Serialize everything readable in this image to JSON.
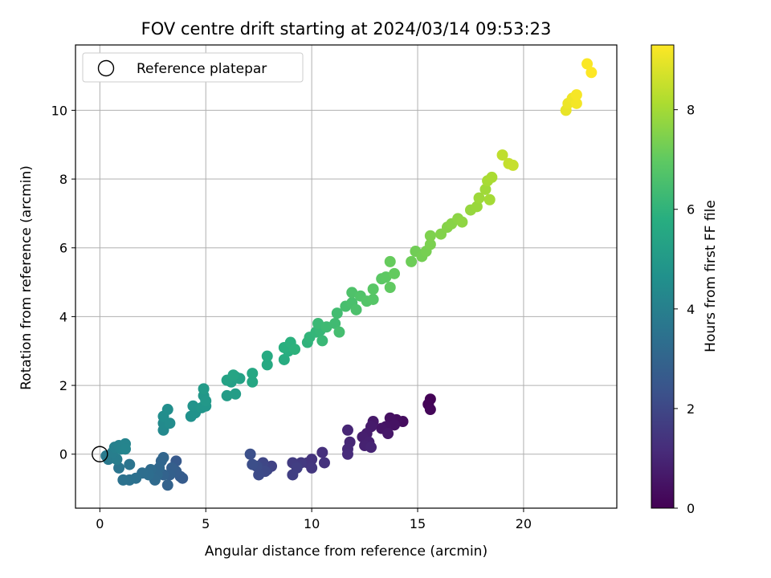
{
  "chart_data": {
    "type": "scatter",
    "title": "FOV centre drift starting at 2024/03/14 09:53:23",
    "xlabel": "Angular distance from reference (arcmin)",
    "ylabel": "Rotation from reference (arcmin)",
    "xlim": [
      -1.15,
      24.4
    ],
    "ylim": [
      -1.57,
      11.9
    ],
    "xticks": [
      0,
      5,
      10,
      15,
      20
    ],
    "yticks": [
      0,
      2,
      4,
      6,
      8,
      10
    ],
    "grid": true,
    "legend": {
      "placement": "top-left",
      "entries": [
        "Reference platepar"
      ]
    },
    "reference_point": {
      "x": 0,
      "y": 0
    },
    "colorbar": {
      "label": "Hours from first FF file",
      "range": [
        0,
        9.3
      ],
      "ticks": [
        0,
        2,
        4,
        6,
        8
      ],
      "colormap": "viridis"
    },
    "points": [
      {
        "x": 15.6,
        "y": 1.6,
        "h": 0.05
      },
      {
        "x": 15.5,
        "y": 1.45,
        "h": 0.1
      },
      {
        "x": 15.6,
        "y": 1.3,
        "h": 0.15
      },
      {
        "x": 14.3,
        "y": 0.95,
        "h": 0.3
      },
      {
        "x": 14.0,
        "y": 1.0,
        "h": 0.35
      },
      {
        "x": 13.7,
        "y": 1.05,
        "h": 0.4
      },
      {
        "x": 13.9,
        "y": 0.85,
        "h": 0.45
      },
      {
        "x": 13.5,
        "y": 0.8,
        "h": 0.5
      },
      {
        "x": 13.3,
        "y": 0.75,
        "h": 0.55
      },
      {
        "x": 13.6,
        "y": 0.6,
        "h": 0.6
      },
      {
        "x": 12.9,
        "y": 0.95,
        "h": 0.65
      },
      {
        "x": 12.8,
        "y": 0.8,
        "h": 0.7
      },
      {
        "x": 12.6,
        "y": 0.6,
        "h": 0.75
      },
      {
        "x": 12.4,
        "y": 0.5,
        "h": 0.8
      },
      {
        "x": 12.7,
        "y": 0.35,
        "h": 0.85
      },
      {
        "x": 12.5,
        "y": 0.25,
        "h": 0.9
      },
      {
        "x": 12.8,
        "y": 0.2,
        "h": 0.95
      },
      {
        "x": 11.7,
        "y": 0.7,
        "h": 1.0
      },
      {
        "x": 11.8,
        "y": 0.35,
        "h": 1.05
      },
      {
        "x": 11.7,
        "y": 0.15,
        "h": 1.1
      },
      {
        "x": 11.7,
        "y": 0.0,
        "h": 1.15
      },
      {
        "x": 10.5,
        "y": 0.05,
        "h": 1.3
      },
      {
        "x": 10.6,
        "y": -0.25,
        "h": 1.35
      },
      {
        "x": 10.0,
        "y": -0.15,
        "h": 1.4
      },
      {
        "x": 9.8,
        "y": -0.25,
        "h": 1.45
      },
      {
        "x": 10.0,
        "y": -0.4,
        "h": 1.5
      },
      {
        "x": 9.5,
        "y": -0.25,
        "h": 1.55
      },
      {
        "x": 9.3,
        "y": -0.3,
        "h": 1.6
      },
      {
        "x": 9.1,
        "y": -0.25,
        "h": 1.65
      },
      {
        "x": 9.3,
        "y": -0.4,
        "h": 1.7
      },
      {
        "x": 9.1,
        "y": -0.6,
        "h": 1.75
      },
      {
        "x": 8.1,
        "y": -0.35,
        "h": 1.85
      },
      {
        "x": 7.9,
        "y": -0.45,
        "h": 1.9
      },
      {
        "x": 7.7,
        "y": -0.25,
        "h": 1.95
      },
      {
        "x": 7.6,
        "y": -0.4,
        "h": 2.0
      },
      {
        "x": 7.8,
        "y": -0.5,
        "h": 2.05
      },
      {
        "x": 7.5,
        "y": -0.6,
        "h": 2.1
      },
      {
        "x": 7.4,
        "y": -0.35,
        "h": 2.15
      },
      {
        "x": 7.2,
        "y": -0.3,
        "h": 2.2
      },
      {
        "x": 7.1,
        "y": 0.0,
        "h": 2.25
      },
      {
        "x": 3.6,
        "y": -0.2,
        "h": 2.6
      },
      {
        "x": 3.9,
        "y": -0.7,
        "h": 2.65
      },
      {
        "x": 3.8,
        "y": -0.65,
        "h": 2.7
      },
      {
        "x": 3.6,
        "y": -0.5,
        "h": 2.75
      },
      {
        "x": 3.4,
        "y": -0.4,
        "h": 2.8
      },
      {
        "x": 3.3,
        "y": -0.6,
        "h": 2.85
      },
      {
        "x": 3.2,
        "y": -0.9,
        "h": 2.9
      },
      {
        "x": 3.0,
        "y": -0.6,
        "h": 2.95
      },
      {
        "x": 2.9,
        "y": -0.2,
        "h": 3.0
      },
      {
        "x": 3.0,
        "y": -0.1,
        "h": 3.05
      },
      {
        "x": 2.8,
        "y": -0.4,
        "h": 3.1
      },
      {
        "x": 2.7,
        "y": -0.6,
        "h": 3.15
      },
      {
        "x": 2.6,
        "y": -0.75,
        "h": 3.2
      },
      {
        "x": 2.4,
        "y": -0.45,
        "h": 3.25
      },
      {
        "x": 2.3,
        "y": -0.6,
        "h": 3.3
      },
      {
        "x": 2.0,
        "y": -0.55,
        "h": 3.35
      },
      {
        "x": 1.7,
        "y": -0.7,
        "h": 3.4
      },
      {
        "x": 1.4,
        "y": -0.75,
        "h": 3.45
      },
      {
        "x": 1.1,
        "y": -0.75,
        "h": 3.5
      },
      {
        "x": 1.4,
        "y": -0.3,
        "h": 3.55
      },
      {
        "x": 0.9,
        "y": -0.4,
        "h": 3.6
      },
      {
        "x": 0.6,
        "y": -0.1,
        "h": 3.7
      },
      {
        "x": 0.4,
        "y": -0.15,
        "h": 3.75
      },
      {
        "x": 0.3,
        "y": -0.05,
        "h": 3.8
      },
      {
        "x": 0.5,
        "y": -0.05,
        "h": 3.85
      },
      {
        "x": 0.8,
        "y": -0.15,
        "h": 3.9
      },
      {
        "x": 0.6,
        "y": 0.05,
        "h": 3.95
      },
      {
        "x": 0.7,
        "y": 0.2,
        "h": 4.0
      },
      {
        "x": 0.9,
        "y": 0.25,
        "h": 4.05
      },
      {
        "x": 1.0,
        "y": 0.15,
        "h": 4.1
      },
      {
        "x": 1.2,
        "y": 0.3,
        "h": 4.15
      },
      {
        "x": 1.2,
        "y": 0.15,
        "h": 4.2
      },
      {
        "x": 3.0,
        "y": 0.7,
        "h": 4.35
      },
      {
        "x": 3.0,
        "y": 0.9,
        "h": 4.4
      },
      {
        "x": 3.3,
        "y": 0.9,
        "h": 4.45
      },
      {
        "x": 3.0,
        "y": 1.1,
        "h": 4.5
      },
      {
        "x": 3.2,
        "y": 1.3,
        "h": 4.55
      },
      {
        "x": 4.3,
        "y": 1.1,
        "h": 4.65
      },
      {
        "x": 4.5,
        "y": 1.2,
        "h": 4.7
      },
      {
        "x": 4.4,
        "y": 1.4,
        "h": 4.75
      },
      {
        "x": 4.8,
        "y": 1.35,
        "h": 4.8
      },
      {
        "x": 5.0,
        "y": 1.4,
        "h": 4.85
      },
      {
        "x": 4.9,
        "y": 1.7,
        "h": 4.9
      },
      {
        "x": 5.0,
        "y": 1.55,
        "h": 4.95
      },
      {
        "x": 4.9,
        "y": 1.9,
        "h": 5.0
      },
      {
        "x": 6.0,
        "y": 1.7,
        "h": 5.1
      },
      {
        "x": 6.4,
        "y": 1.75,
        "h": 5.15
      },
      {
        "x": 6.2,
        "y": 2.1,
        "h": 5.2
      },
      {
        "x": 6.4,
        "y": 2.25,
        "h": 5.25
      },
      {
        "x": 6.6,
        "y": 2.2,
        "h": 5.3
      },
      {
        "x": 6.0,
        "y": 2.15,
        "h": 5.35
      },
      {
        "x": 6.3,
        "y": 2.3,
        "h": 5.4
      },
      {
        "x": 7.2,
        "y": 2.1,
        "h": 5.5
      },
      {
        "x": 7.2,
        "y": 2.35,
        "h": 5.55
      },
      {
        "x": 7.9,
        "y": 2.6,
        "h": 5.6
      },
      {
        "x": 7.9,
        "y": 2.85,
        "h": 5.65
      },
      {
        "x": 8.7,
        "y": 2.75,
        "h": 5.75
      },
      {
        "x": 8.9,
        "y": 3.0,
        "h": 5.8
      },
      {
        "x": 8.7,
        "y": 3.1,
        "h": 5.85
      },
      {
        "x": 9.0,
        "y": 3.25,
        "h": 5.9
      },
      {
        "x": 9.2,
        "y": 3.05,
        "h": 5.95
      },
      {
        "x": 9.8,
        "y": 3.25,
        "h": 6.0
      },
      {
        "x": 9.9,
        "y": 3.4,
        "h": 6.05
      },
      {
        "x": 10.2,
        "y": 3.55,
        "h": 6.1
      },
      {
        "x": 10.4,
        "y": 3.6,
        "h": 6.15
      },
      {
        "x": 10.5,
        "y": 3.3,
        "h": 6.2
      },
      {
        "x": 10.3,
        "y": 3.8,
        "h": 6.25
      },
      {
        "x": 10.7,
        "y": 3.7,
        "h": 6.3
      },
      {
        "x": 11.1,
        "y": 3.8,
        "h": 6.35
      },
      {
        "x": 11.2,
        "y": 4.1,
        "h": 6.4
      },
      {
        "x": 11.3,
        "y": 3.55,
        "h": 6.45
      },
      {
        "x": 11.6,
        "y": 4.3,
        "h": 6.5
      },
      {
        "x": 11.9,
        "y": 4.4,
        "h": 6.55
      },
      {
        "x": 12.1,
        "y": 4.2,
        "h": 6.6
      },
      {
        "x": 11.9,
        "y": 4.7,
        "h": 6.65
      },
      {
        "x": 12.3,
        "y": 4.6,
        "h": 6.7
      },
      {
        "x": 12.6,
        "y": 4.45,
        "h": 6.75
      },
      {
        "x": 12.9,
        "y": 4.5,
        "h": 6.8
      },
      {
        "x": 12.9,
        "y": 4.8,
        "h": 6.85
      },
      {
        "x": 13.3,
        "y": 5.1,
        "h": 6.9
      },
      {
        "x": 13.5,
        "y": 5.15,
        "h": 6.95
      },
      {
        "x": 13.7,
        "y": 4.85,
        "h": 7.0
      },
      {
        "x": 13.9,
        "y": 5.25,
        "h": 7.05
      },
      {
        "x": 13.7,
        "y": 5.6,
        "h": 7.1
      },
      {
        "x": 14.7,
        "y": 5.6,
        "h": 7.2
      },
      {
        "x": 14.9,
        "y": 5.9,
        "h": 7.25
      },
      {
        "x": 15.2,
        "y": 5.75,
        "h": 7.3
      },
      {
        "x": 15.4,
        "y": 5.9,
        "h": 7.35
      },
      {
        "x": 15.6,
        "y": 6.1,
        "h": 7.4
      },
      {
        "x": 15.6,
        "y": 6.35,
        "h": 7.45
      },
      {
        "x": 16.1,
        "y": 6.4,
        "h": 7.5
      },
      {
        "x": 16.4,
        "y": 6.6,
        "h": 7.55
      },
      {
        "x": 16.6,
        "y": 6.7,
        "h": 7.6
      },
      {
        "x": 16.9,
        "y": 6.85,
        "h": 7.65
      },
      {
        "x": 17.1,
        "y": 6.75,
        "h": 7.7
      },
      {
        "x": 17.5,
        "y": 7.1,
        "h": 7.8
      },
      {
        "x": 17.8,
        "y": 7.2,
        "h": 7.85
      },
      {
        "x": 17.9,
        "y": 7.45,
        "h": 7.9
      },
      {
        "x": 18.2,
        "y": 7.7,
        "h": 7.95
      },
      {
        "x": 18.4,
        "y": 7.4,
        "h": 8.0
      },
      {
        "x": 18.3,
        "y": 7.95,
        "h": 8.05
      },
      {
        "x": 18.5,
        "y": 8.05,
        "h": 8.1
      },
      {
        "x": 19.0,
        "y": 8.7,
        "h": 8.4
      },
      {
        "x": 19.3,
        "y": 8.45,
        "h": 8.45
      },
      {
        "x": 19.5,
        "y": 8.4,
        "h": 8.5
      },
      {
        "x": 22.0,
        "y": 10.0,
        "h": 9.0
      },
      {
        "x": 22.1,
        "y": 10.2,
        "h": 9.05
      },
      {
        "x": 22.3,
        "y": 10.35,
        "h": 9.1
      },
      {
        "x": 22.5,
        "y": 10.2,
        "h": 9.15
      },
      {
        "x": 22.5,
        "y": 10.45,
        "h": 9.2
      },
      {
        "x": 23.0,
        "y": 11.35,
        "h": 9.25
      },
      {
        "x": 23.2,
        "y": 11.1,
        "h": 9.3
      }
    ]
  }
}
